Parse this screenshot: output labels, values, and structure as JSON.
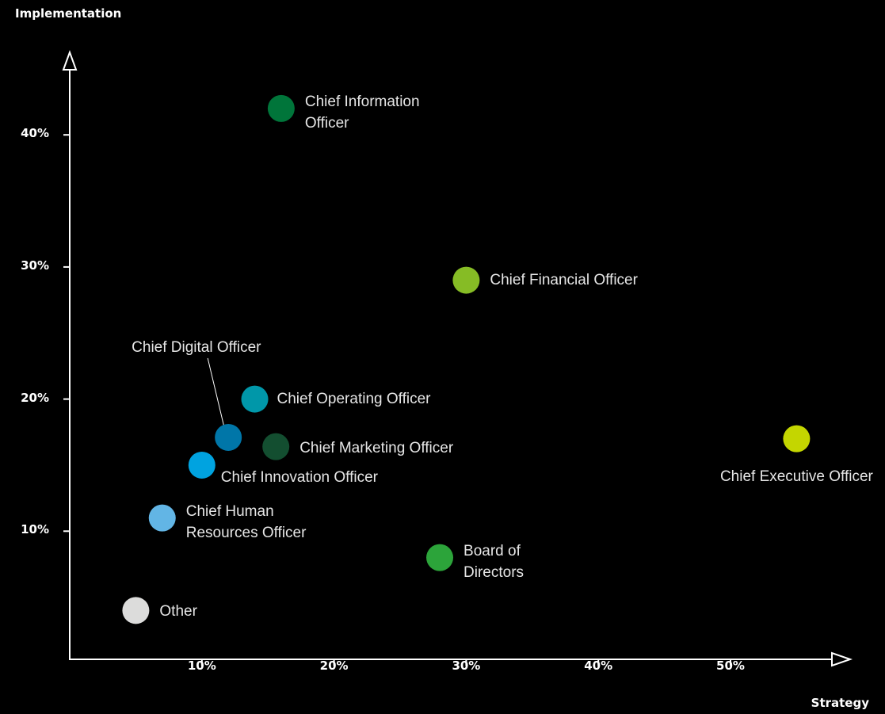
{
  "chart_data": {
    "type": "scatter",
    "y_label": "Implementation",
    "x_label": "Strategy",
    "xlim": [
      0,
      58
    ],
    "ylim": [
      0,
      46
    ],
    "xticks": [
      {
        "value": 10,
        "label": "10%"
      },
      {
        "value": 20,
        "label": "20%"
      },
      {
        "value": 30,
        "label": "30%"
      },
      {
        "value": 40,
        "label": "40%"
      },
      {
        "value": 50,
        "label": "50%"
      }
    ],
    "yticks": [
      {
        "value": 10,
        "label": "10%"
      },
      {
        "value": 20,
        "label": "20%"
      },
      {
        "value": 30,
        "label": "30%"
      },
      {
        "value": 40,
        "label": "40%"
      }
    ],
    "series": [
      {
        "name": "Chief Information Officer",
        "color": "#00753a",
        "x": [
          16
        ],
        "values": [
          42
        ]
      },
      {
        "name": "Chief Financial Officer",
        "color": "#86bc25",
        "x": [
          30
        ],
        "values": [
          29
        ]
      },
      {
        "name": "Chief Digital Officer",
        "color": "#0076a8",
        "x": [
          12
        ],
        "values": [
          17.1
        ]
      },
      {
        "name": "Chief Operating Officer",
        "color": "#0097a9",
        "x": [
          14
        ],
        "values": [
          20
        ]
      },
      {
        "name": "Chief Marketing Officer",
        "color": "#134e30",
        "x": [
          15.6
        ],
        "values": [
          16.4
        ]
      },
      {
        "name": "Chief Innovation Officer",
        "color": "#00a3e0",
        "x": [
          10
        ],
        "values": [
          15
        ]
      },
      {
        "name": "Chief Human Resources Officer",
        "color": "#62b5e5",
        "x": [
          7
        ],
        "values": [
          11
        ]
      },
      {
        "name": "Board of Directors",
        "color": "#2ca43a",
        "x": [
          28
        ],
        "values": [
          8
        ]
      },
      {
        "name": "Other",
        "color": "#dcdcdb",
        "x": [
          5
        ],
        "values": [
          4
        ]
      },
      {
        "name": "Chief Executive Officer",
        "color": "#c4d600",
        "x": [
          55
        ],
        "values": [
          17
        ]
      }
    ]
  }
}
